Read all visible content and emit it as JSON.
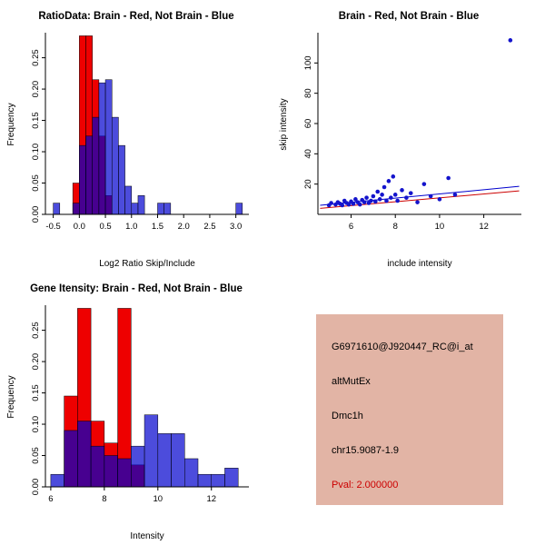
{
  "page": {
    "background": "#FFFFFF"
  },
  "chart_data": [
    {
      "id": "ratio-histogram",
      "type": "histogram",
      "title": "RatioData: Brain - Red, Not Brain - Blue",
      "xlabel": "Log2 Ratio Skip/Include",
      "ylabel": "Frequency",
      "xlim": [
        -0.65,
        3.25
      ],
      "ylim": [
        0,
        0.29
      ],
      "xticks": [
        -0.5,
        0,
        0.5,
        1,
        1.5,
        2,
        2.5,
        3
      ],
      "xtick_labels": [
        "-0.5",
        "0.0",
        "0.5",
        "1.0",
        "1.5",
        "2.0",
        "2.5",
        "3.0"
      ],
      "yticks": [
        0,
        0.05,
        0.1,
        0.15,
        0.2,
        0.25
      ],
      "ytick_labels": [
        "0.00",
        "0.05",
        "0.10",
        "0.15",
        "0.20",
        "0.25"
      ],
      "bin_width": 0.125,
      "series": [
        {
          "name": "Brain",
          "color": "#EE0000",
          "opacity": 1,
          "bins": [
            {
              "x": -0.125,
              "h": 0.05
            },
            {
              "x": 0,
              "h": 0.285
            },
            {
              "x": 0.125,
              "h": 0.285
            },
            {
              "x": 0.25,
              "h": 0.215
            },
            {
              "x": 0.375,
              "h": 0.125
            },
            {
              "x": 0.5,
              "h": 0.03
            }
          ]
        },
        {
          "name": "Not Brain",
          "color": "#0000CD",
          "opacity": 0.7,
          "bins": [
            {
              "x": -0.5,
              "h": 0.018
            },
            {
              "x": -0.125,
              "h": 0.018
            },
            {
              "x": 0,
              "h": 0.11
            },
            {
              "x": 0.125,
              "h": 0.125
            },
            {
              "x": 0.25,
              "h": 0.155
            },
            {
              "x": 0.375,
              "h": 0.21
            },
            {
              "x": 0.5,
              "h": 0.215
            },
            {
              "x": 0.625,
              "h": 0.155
            },
            {
              "x": 0.75,
              "h": 0.11
            },
            {
              "x": 0.875,
              "h": 0.045
            },
            {
              "x": 1,
              "h": 0.018
            },
            {
              "x": 1.125,
              "h": 0.03
            },
            {
              "x": 1.5,
              "h": 0.018
            },
            {
              "x": 1.625,
              "h": 0.018
            },
            {
              "x": 3,
              "h": 0.018
            }
          ]
        }
      ]
    },
    {
      "id": "intensity-scatter",
      "type": "scatter",
      "title": "Brain - Red, Not Brain - Blue",
      "xlabel": "include intensity",
      "ylabel": "skip intensity",
      "xlim": [
        4.5,
        13.7
      ],
      "ylim": [
        0,
        120
      ],
      "xticks": [
        6,
        8,
        10,
        12
      ],
      "xtick_labels": [
        "6",
        "8",
        "10",
        "12"
      ],
      "yticks": [
        20,
        40,
        60,
        80,
        100
      ],
      "ytick_labels": [
        "20",
        "40",
        "60",
        "80",
        "100"
      ],
      "point_color": "#1414CC",
      "point_radius": 2.3,
      "points": [
        [
          5,
          6
        ],
        [
          5.1,
          7.5
        ],
        [
          5.3,
          6.5
        ],
        [
          5.4,
          8
        ],
        [
          5.5,
          7
        ],
        [
          5.6,
          6
        ],
        [
          5.7,
          9
        ],
        [
          5.8,
          7.5
        ],
        [
          5.9,
          6.5
        ],
        [
          6,
          8.5
        ],
        [
          6.1,
          7
        ],
        [
          6.2,
          10
        ],
        [
          6.3,
          8
        ],
        [
          6.4,
          6.5
        ],
        [
          6.5,
          9.5
        ],
        [
          6.6,
          8
        ],
        [
          6.7,
          11
        ],
        [
          6.8,
          7.5
        ],
        [
          6.9,
          9
        ],
        [
          7,
          12
        ],
        [
          7.1,
          8.5
        ],
        [
          7.2,
          15
        ],
        [
          7.3,
          10
        ],
        [
          7.4,
          13
        ],
        [
          7.5,
          18
        ],
        [
          7.6,
          9
        ],
        [
          7.7,
          22
        ],
        [
          7.8,
          11
        ],
        [
          7.9,
          25
        ],
        [
          8,
          13
        ],
        [
          8.1,
          9
        ],
        [
          8.3,
          16
        ],
        [
          8.5,
          11
        ],
        [
          8.7,
          14
        ],
        [
          9,
          8
        ],
        [
          9.3,
          20
        ],
        [
          9.6,
          12
        ],
        [
          10,
          10
        ],
        [
          10.4,
          24
        ],
        [
          10.7,
          13
        ],
        [
          13.2,
          115
        ]
      ],
      "lines": [
        {
          "name": "not-brain-fit",
          "color": "#0000CD",
          "x1": 4.6,
          "y1": 6,
          "x2": 13.6,
          "y2": 18.5
        },
        {
          "name": "brain-fit",
          "color": "#CC0000",
          "x1": 4.6,
          "y1": 4,
          "x2": 13.6,
          "y2": 15.5
        }
      ]
    },
    {
      "id": "gene-intensity-histogram",
      "type": "histogram",
      "title": "Gene Itensity: Brain - Red, Not Brain - Blue",
      "xlabel": "Intensity",
      "ylabel": "Frequency",
      "xlim": [
        5.8,
        13.4
      ],
      "ylim": [
        0,
        0.29
      ],
      "xticks": [
        6,
        8,
        10,
        12
      ],
      "xtick_labels": [
        "6",
        "8",
        "10",
        "12"
      ],
      "yticks": [
        0,
        0.05,
        0.1,
        0.15,
        0.2,
        0.25
      ],
      "ytick_labels": [
        "0.00",
        "0.05",
        "0.10",
        "0.15",
        "0.20",
        "0.25"
      ],
      "bin_width": 0.5,
      "series": [
        {
          "name": "Brain",
          "color": "#EE0000",
          "opacity": 1,
          "bins": [
            {
              "x": 6.5,
              "h": 0.145
            },
            {
              "x": 7,
              "h": 0.285
            },
            {
              "x": 7.5,
              "h": 0.105
            },
            {
              "x": 8,
              "h": 0.07
            },
            {
              "x": 8.5,
              "h": 0.285
            },
            {
              "x": 9,
              "h": 0.035
            }
          ]
        },
        {
          "name": "Not Brain",
          "color": "#0000CD",
          "opacity": 0.7,
          "bins": [
            {
              "x": 6,
              "h": 0.02
            },
            {
              "x": 6.5,
              "h": 0.09
            },
            {
              "x": 7,
              "h": 0.105
            },
            {
              "x": 7.5,
              "h": 0.065
            },
            {
              "x": 8,
              "h": 0.05
            },
            {
              "x": 8.5,
              "h": 0.045
            },
            {
              "x": 9,
              "h": 0.065
            },
            {
              "x": 9.5,
              "h": 0.115
            },
            {
              "x": 10,
              "h": 0.085
            },
            {
              "x": 10.5,
              "h": 0.085
            },
            {
              "x": 11,
              "h": 0.045
            },
            {
              "x": 11.5,
              "h": 0.02
            },
            {
              "x": 12,
              "h": 0.02
            },
            {
              "x": 12.5,
              "h": 0.03
            }
          ]
        }
      ]
    }
  ],
  "info_panel": {
    "bg_color": "#E2B4A5",
    "pval_color": "#CC0000",
    "lines": [
      {
        "text": "G6971610@J920447_RC@i_at"
      },
      {
        "text": "altMutEx"
      },
      {
        "text": "Dmc1h"
      },
      {
        "text": "chr15.9087-1.9"
      },
      {
        "text": "Pval: 2.000000"
      }
    ]
  }
}
